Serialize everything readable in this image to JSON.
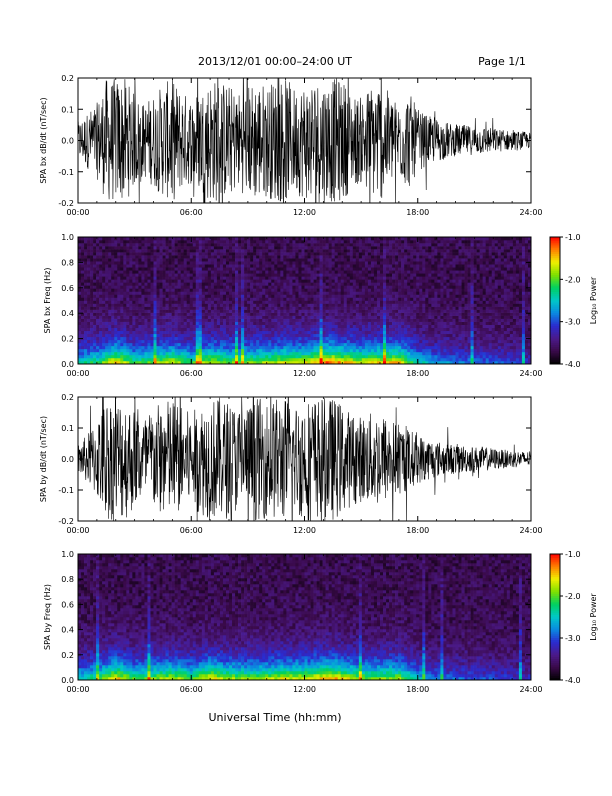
{
  "header": {
    "title": "2013/12/01   00:00–24:00 UT",
    "page": "Page 1/1"
  },
  "footer": {
    "xlabel": "Universal Time (hh:mm)"
  },
  "colors": {
    "trace": "#000000",
    "colormap": [
      "#000000",
      "#3a0a4a",
      "#4b1a8a",
      "#2a2bd0",
      "#0a8ae0",
      "#00c8c8",
      "#00d060",
      "#80e000",
      "#f0f000",
      "#ff8000",
      "#ff0000"
    ]
  },
  "chart_data": [
    {
      "type": "line",
      "ylabel": "SPA bx dB/dt (nT/sec)",
      "xlim": [
        0,
        24
      ],
      "ylim": [
        -0.2,
        0.2
      ],
      "x_ticks": [
        "00:00",
        "06:00",
        "12:00",
        "18:00",
        "24:00"
      ],
      "y_ticks": [
        "-0.2",
        "-0.1",
        "0.0",
        "0.1",
        "0.2"
      ],
      "y_tick_values": [
        -0.2,
        -0.1,
        0.0,
        0.1,
        0.2
      ],
      "envelope": [
        [
          0.0,
          0.06
        ],
        [
          0.5,
          0.09
        ],
        [
          1.0,
          0.12
        ],
        [
          1.5,
          0.2
        ],
        [
          2.0,
          0.2
        ],
        [
          2.5,
          0.2
        ],
        [
          3.0,
          0.15
        ],
        [
          3.5,
          0.12
        ],
        [
          4.0,
          0.15
        ],
        [
          4.5,
          0.18
        ],
        [
          5.0,
          0.2
        ],
        [
          5.5,
          0.16
        ],
        [
          6.0,
          0.14
        ],
        [
          6.5,
          0.17
        ],
        [
          7.0,
          0.2
        ],
        [
          7.5,
          0.2
        ],
        [
          8.0,
          0.18
        ],
        [
          8.5,
          0.16
        ],
        [
          9.0,
          0.18
        ],
        [
          9.5,
          0.2
        ],
        [
          10.0,
          0.18
        ],
        [
          10.5,
          0.2
        ],
        [
          11.0,
          0.2
        ],
        [
          11.5,
          0.17
        ],
        [
          12.0,
          0.19
        ],
        [
          12.5,
          0.2
        ],
        [
          13.0,
          0.2
        ],
        [
          13.5,
          0.2
        ],
        [
          14.0,
          0.2
        ],
        [
          14.5,
          0.15
        ],
        [
          15.0,
          0.14
        ],
        [
          15.5,
          0.18
        ],
        [
          16.0,
          0.2
        ],
        [
          16.5,
          0.15
        ],
        [
          17.0,
          0.12
        ],
        [
          17.5,
          0.16
        ],
        [
          18.0,
          0.1
        ],
        [
          18.5,
          0.08
        ],
        [
          19.0,
          0.07
        ],
        [
          19.5,
          0.06
        ],
        [
          20.0,
          0.05
        ],
        [
          20.5,
          0.05
        ],
        [
          21.0,
          0.045
        ],
        [
          21.5,
          0.045
        ],
        [
          22.0,
          0.04
        ],
        [
          22.5,
          0.035
        ],
        [
          23.0,
          0.03
        ],
        [
          23.5,
          0.03
        ],
        [
          24.0,
          0.025
        ]
      ]
    },
    {
      "type": "heatmap",
      "ylabel": "SPA bx Freq (Hz)",
      "xlim": [
        0,
        24
      ],
      "ylim": [
        0.0,
        1.0
      ],
      "x_ticks": [
        "00:00",
        "06:00",
        "12:00",
        "18:00",
        "24:00"
      ],
      "y_ticks": [
        "0.0",
        "0.2",
        "0.4",
        "0.6",
        "0.8",
        "1.0"
      ],
      "y_tick_values": [
        0.0,
        0.2,
        0.4,
        0.6,
        0.8,
        1.0
      ],
      "colorbar": {
        "label": "Log₁₀ Power",
        "range": [
          -4.0,
          -1.0
        ],
        "ticks": [
          "-1.0",
          "-2.0",
          "-3.0",
          "-4.0"
        ],
        "tick_values": [
          -1.0,
          -2.0,
          -3.0,
          -4.0
        ]
      },
      "activity": [
        [
          0.0,
          0.5
        ],
        [
          1.0,
          0.6
        ],
        [
          2.0,
          0.9
        ],
        [
          3.0,
          0.6
        ],
        [
          4.0,
          0.7
        ],
        [
          5.0,
          0.8
        ],
        [
          6.0,
          0.6
        ],
        [
          7.0,
          0.8
        ],
        [
          8.0,
          0.7
        ],
        [
          9.0,
          0.7
        ],
        [
          10.0,
          0.75
        ],
        [
          11.0,
          0.8
        ],
        [
          12.0,
          0.8
        ],
        [
          13.0,
          0.95
        ],
        [
          13.5,
          1.0
        ],
        [
          14.0,
          0.9
        ],
        [
          15.0,
          0.8
        ],
        [
          16.0,
          0.85
        ],
        [
          17.0,
          0.9
        ],
        [
          18.0,
          0.5
        ],
        [
          19.0,
          0.4
        ],
        [
          20.0,
          0.35
        ],
        [
          21.0,
          0.3
        ],
        [
          22.0,
          0.3
        ],
        [
          23.0,
          0.25
        ],
        [
          24.0,
          0.2
        ]
      ]
    },
    {
      "type": "line",
      "ylabel": "SPA by dB/dt (nT/sec)",
      "xlim": [
        0,
        24
      ],
      "ylim": [
        -0.2,
        0.2
      ],
      "x_ticks": [
        "00:00",
        "06:00",
        "12:00",
        "18:00",
        "24:00"
      ],
      "y_ticks": [
        "-0.2",
        "-0.1",
        "0.0",
        "0.1",
        "0.2"
      ],
      "y_tick_values": [
        -0.2,
        -0.1,
        0.0,
        0.1,
        0.2
      ],
      "envelope": [
        [
          0.0,
          0.05
        ],
        [
          0.5,
          0.08
        ],
        [
          1.0,
          0.13
        ],
        [
          1.5,
          0.2
        ],
        [
          2.0,
          0.2
        ],
        [
          2.5,
          0.2
        ],
        [
          3.0,
          0.16
        ],
        [
          3.5,
          0.14
        ],
        [
          4.0,
          0.17
        ],
        [
          4.5,
          0.19
        ],
        [
          5.0,
          0.2
        ],
        [
          5.5,
          0.17
        ],
        [
          6.0,
          0.15
        ],
        [
          6.5,
          0.18
        ],
        [
          7.0,
          0.2
        ],
        [
          7.5,
          0.2
        ],
        [
          8.0,
          0.19
        ],
        [
          8.5,
          0.17
        ],
        [
          9.0,
          0.18
        ],
        [
          9.5,
          0.2
        ],
        [
          10.0,
          0.19
        ],
        [
          10.5,
          0.2
        ],
        [
          11.0,
          0.2
        ],
        [
          11.5,
          0.18
        ],
        [
          12.0,
          0.2
        ],
        [
          12.5,
          0.2
        ],
        [
          13.0,
          0.2
        ],
        [
          13.5,
          0.2
        ],
        [
          14.0,
          0.18
        ],
        [
          14.5,
          0.15
        ],
        [
          15.0,
          0.14
        ],
        [
          15.5,
          0.15
        ],
        [
          16.0,
          0.16
        ],
        [
          16.5,
          0.13
        ],
        [
          17.0,
          0.12
        ],
        [
          17.5,
          0.1
        ],
        [
          18.0,
          0.08
        ],
        [
          18.5,
          0.07
        ],
        [
          19.0,
          0.06
        ],
        [
          19.5,
          0.05
        ],
        [
          20.0,
          0.05
        ],
        [
          20.5,
          0.045
        ],
        [
          21.0,
          0.04
        ],
        [
          21.5,
          0.04
        ],
        [
          22.0,
          0.035
        ],
        [
          22.5,
          0.03
        ],
        [
          23.0,
          0.03
        ],
        [
          23.5,
          0.025
        ],
        [
          24.0,
          0.025
        ]
      ]
    },
    {
      "type": "heatmap",
      "ylabel": "SPA by Freq (Hz)",
      "xlim": [
        0,
        24
      ],
      "ylim": [
        0.0,
        1.0
      ],
      "x_ticks": [
        "00:00",
        "06:00",
        "12:00",
        "18:00",
        "24:00"
      ],
      "y_ticks": [
        "0.0",
        "0.2",
        "0.4",
        "0.6",
        "0.8",
        "1.0"
      ],
      "y_tick_values": [
        0.0,
        0.2,
        0.4,
        0.6,
        0.8,
        1.0
      ],
      "colorbar": {
        "label": "Log₁₀ Power",
        "range": [
          -4.0,
          -1.0
        ],
        "ticks": [
          "-1.0",
          "-2.0",
          "-3.0",
          "-4.0"
        ],
        "tick_values": [
          -1.0,
          -2.0,
          -3.0,
          -4.0
        ]
      },
      "activity": [
        [
          0.0,
          0.5
        ],
        [
          1.0,
          0.6
        ],
        [
          2.0,
          0.9
        ],
        [
          3.0,
          0.65
        ],
        [
          4.0,
          0.7
        ],
        [
          5.0,
          0.8
        ],
        [
          6.0,
          0.65
        ],
        [
          7.0,
          0.85
        ],
        [
          8.0,
          0.75
        ],
        [
          9.0,
          0.7
        ],
        [
          10.0,
          0.75
        ],
        [
          11.0,
          0.8
        ],
        [
          12.0,
          0.8
        ],
        [
          13.0,
          0.9
        ],
        [
          13.5,
          0.95
        ],
        [
          14.0,
          0.85
        ],
        [
          15.0,
          0.7
        ],
        [
          16.0,
          0.7
        ],
        [
          17.0,
          0.75
        ],
        [
          18.0,
          0.45
        ],
        [
          19.0,
          0.35
        ],
        [
          20.0,
          0.3
        ],
        [
          21.0,
          0.28
        ],
        [
          22.0,
          0.25
        ],
        [
          23.0,
          0.22
        ],
        [
          24.0,
          0.2
        ]
      ]
    }
  ]
}
